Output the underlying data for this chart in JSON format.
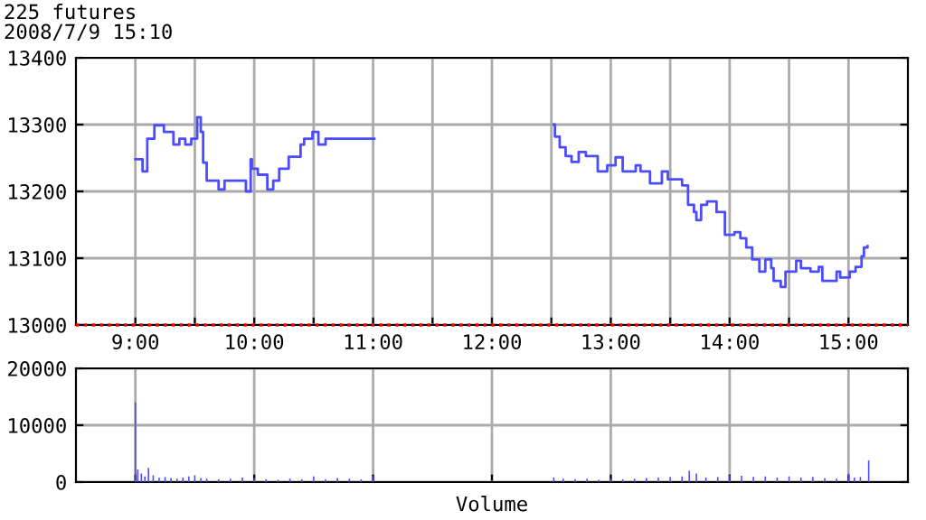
{
  "chart_data": [
    {
      "type": "step",
      "title": "225 futures",
      "subtitle": "2008/7/9 15:10",
      "xlim": [
        8.5,
        15.5
      ],
      "ylim": [
        13000,
        13400
      ],
      "yticks": [
        13000,
        13100,
        13200,
        13300,
        13400
      ],
      "xticks": [
        {
          "value": 9,
          "label": "9:00"
        },
        {
          "value": 9.5,
          "label": null
        },
        {
          "value": 10,
          "label": "10:00"
        },
        {
          "value": 10.5,
          "label": null
        },
        {
          "value": 11,
          "label": "11:00"
        },
        {
          "value": 11.5,
          "label": null
        },
        {
          "value": 12,
          "label": "12:00"
        },
        {
          "value": 12.5,
          "label": null
        },
        {
          "value": 13,
          "label": "13:00"
        },
        {
          "value": 13.5,
          "label": null
        },
        {
          "value": 14,
          "label": "14:00"
        },
        {
          "value": 14.5,
          "label": null
        },
        {
          "value": 15,
          "label": "15:00"
        }
      ],
      "grid": true,
      "ref_lines": [
        {
          "axis": "y",
          "value": 13000,
          "color": "#ff0000",
          "line_style": "dotted"
        }
      ],
      "x": [
        9.0,
        9.06,
        9.1,
        9.16,
        9.24,
        9.32,
        9.37,
        9.42,
        9.47,
        9.52,
        9.55,
        9.57,
        9.6,
        9.7,
        9.75,
        9.93,
        9.97,
        9.98,
        10.03,
        10.11,
        10.16,
        10.21,
        10.29,
        10.39,
        10.42,
        10.49,
        10.54,
        10.6,
        10.7,
        11.0,
        11.01,
        12.52,
        12.53,
        12.57,
        12.62,
        12.67,
        12.73,
        12.79,
        12.89,
        12.97,
        13.04,
        13.1,
        13.21,
        13.25,
        13.33,
        13.43,
        13.48,
        13.6,
        13.65,
        13.7,
        13.72,
        13.76,
        13.81,
        13.89,
        13.96,
        14.04,
        14.09,
        14.14,
        14.19,
        14.25,
        14.3,
        14.35,
        14.37,
        14.43,
        14.47,
        14.56,
        14.6,
        14.68,
        14.75,
        14.78,
        14.85,
        14.9,
        14.93,
        15.01,
        15.06,
        15.11,
        15.13,
        15.16
      ],
      "series": [
        {
          "color": "#4b4bff",
          "values": [
            13248,
            13230,
            13279,
            13299,
            13289,
            13270,
            13279,
            13270,
            13279,
            13311,
            13289,
            13243,
            13216,
            13203,
            13216,
            13200,
            13248,
            13234,
            13225,
            13203,
            13216,
            13234,
            13252,
            13270,
            13279,
            13289,
            13270,
            13279,
            13279,
            13279,
            null,
            13300,
            13282,
            13266,
            13253,
            13244,
            13259,
            13253,
            13230,
            13239,
            13251,
            13230,
            13239,
            13230,
            13212,
            13230,
            13218,
            13209,
            13180,
            13169,
            13157,
            13180,
            13185,
            13169,
            13135,
            13139,
            13130,
            13116,
            13098,
            13080,
            13098,
            13085,
            13066,
            13057,
            13080,
            13096,
            13085,
            13080,
            13087,
            13066,
            13066,
            13080,
            13071,
            13080,
            13087,
            13103,
            13116,
            13118
          ]
        }
      ]
    },
    {
      "type": "bar",
      "xlim": [
        8.5,
        15.5
      ],
      "ylim": [
        0,
        20000
      ],
      "yticks": [
        0,
        10000,
        20000
      ],
      "tick_labels": "y",
      "grid": true,
      "xticks": [
        {
          "value": 9,
          "label": null
        },
        {
          "value": 10,
          "label": null
        },
        {
          "value": 11,
          "label": null
        },
        {
          "value": 12,
          "label": null
        },
        {
          "value": 13,
          "label": null
        },
        {
          "value": 14,
          "label": null
        },
        {
          "value": 15,
          "label": null
        }
      ],
      "annotations": [
        "Volume"
      ],
      "x": [
        9.0,
        9.02,
        9.05,
        9.08,
        9.11,
        9.15,
        9.2,
        9.25,
        9.3,
        9.35,
        9.4,
        9.45,
        9.5,
        9.55,
        9.6,
        9.7,
        9.8,
        9.9,
        10.0,
        10.1,
        10.2,
        10.3,
        10.4,
        10.5,
        10.6,
        10.7,
        10.8,
        10.9,
        11.0,
        12.52,
        12.6,
        12.7,
        12.8,
        12.9,
        13.0,
        13.1,
        13.2,
        13.3,
        13.4,
        13.5,
        13.6,
        13.66,
        13.72,
        13.8,
        13.9,
        14.0,
        14.1,
        14.2,
        14.3,
        14.4,
        14.5,
        14.6,
        14.7,
        14.8,
        14.9,
        15.0,
        15.05,
        15.1,
        15.17
      ],
      "series": [
        {
          "color": "#4b4bff",
          "values": [
            14000,
            2200,
            1500,
            1000,
            2500,
            1200,
            800,
            900,
            700,
            600,
            800,
            1000,
            1200,
            700,
            600,
            500,
            600,
            800,
            700,
            500,
            400,
            600,
            500,
            1000,
            500,
            700,
            600,
            500,
            1100,
            800,
            600,
            500,
            600,
            400,
            600,
            500,
            600,
            700,
            800,
            900,
            1000,
            2000,
            1500,
            800,
            900,
            1200,
            1100,
            900,
            1000,
            800,
            1000,
            800,
            900,
            700,
            600,
            1500,
            800,
            900,
            3800
          ]
        }
      ]
    }
  ]
}
